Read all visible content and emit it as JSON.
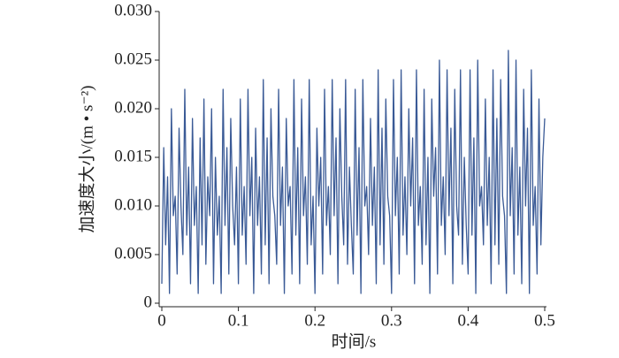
{
  "chart_data": {
    "type": "line",
    "x_label": "时间/s",
    "y_label": "加速度大小/(m • s⁻²)",
    "color": "#3a5a96",
    "xlim": [
      0,
      0.5
    ],
    "xticks": [
      0,
      0.1,
      0.2,
      0.3,
      0.4,
      0.5
    ],
    "ylim": [
      0,
      0.03
    ],
    "yticks": [
      0,
      0.005,
      {
        "value": 0.01,
        "label": "0.010"
      },
      0.015,
      {
        "value": 0.02,
        "label": "0.020"
      },
      0.025,
      {
        "value": 0.03,
        "label": "0.030"
      }
    ],
    "grid": false,
    "x": [
      0,
      0.0025,
      0.005,
      0.0075,
      0.01,
      0.0125,
      0.015,
      0.0175,
      0.02,
      0.0225,
      0.025,
      0.0275,
      0.03,
      0.0325,
      0.035,
      0.0375,
      0.04,
      0.0425,
      0.045,
      0.0475,
      0.05,
      0.0525,
      0.055,
      0.0575,
      0.06,
      0.0625,
      0.065,
      0.0675,
      0.07,
      0.0725,
      0.075,
      0.0775,
      0.08,
      0.0825,
      0.085,
      0.0875,
      0.09,
      0.0925,
      0.095,
      0.0975,
      0.1,
      0.1025,
      0.105,
      0.1075,
      0.11,
      0.1125,
      0.115,
      0.1175,
      0.12,
      0.1225,
      0.125,
      0.1275,
      0.13,
      0.1325,
      0.135,
      0.1375,
      0.14,
      0.1425,
      0.145,
      0.1475,
      0.15,
      0.1525,
      0.155,
      0.1575,
      0.16,
      0.1625,
      0.165,
      0.1675,
      0.17,
      0.1725,
      0.175,
      0.1775,
      0.18,
      0.1825,
      0.185,
      0.1875,
      0.19,
      0.1925,
      0.195,
      0.1975,
      0.2,
      0.2025,
      0.205,
      0.2075,
      0.21,
      0.2125,
      0.215,
      0.2175,
      0.22,
      0.2225,
      0.225,
      0.2275,
      0.23,
      0.2325,
      0.235,
      0.2375,
      0.24,
      0.2425,
      0.245,
      0.2475,
      0.25,
      0.2525,
      0.255,
      0.2575,
      0.26,
      0.2625,
      0.265,
      0.2675,
      0.27,
      0.2725,
      0.275,
      0.2775,
      0.28,
      0.2825,
      0.285,
      0.2875,
      0.29,
      0.2925,
      0.295,
      0.2975,
      0.3,
      0.3025,
      0.305,
      0.3075,
      0.31,
      0.3125,
      0.315,
      0.3175,
      0.32,
      0.3225,
      0.325,
      0.3275,
      0.33,
      0.3325,
      0.335,
      0.3375,
      0.34,
      0.3425,
      0.345,
      0.3475,
      0.35,
      0.3525,
      0.355,
      0.3575,
      0.36,
      0.3625,
      0.365,
      0.3675,
      0.37,
      0.3725,
      0.375,
      0.3775,
      0.38,
      0.3825,
      0.385,
      0.3875,
      0.39,
      0.3925,
      0.395,
      0.3975,
      0.4,
      0.4025,
      0.405,
      0.4075,
      0.41,
      0.4125,
      0.415,
      0.4175,
      0.42,
      0.4225,
      0.425,
      0.4275,
      0.43,
      0.4325,
      0.435,
      0.4375,
      0.44,
      0.4425,
      0.445,
      0.4475,
      0.45,
      0.4525,
      0.455,
      0.4575,
      0.46,
      0.4625,
      0.465,
      0.4675,
      0.47,
      0.4725,
      0.475,
      0.4775,
      0.48,
      0.4825,
      0.485,
      0.4875,
      0.49,
      0.4925,
      0.495,
      0.4975,
      0.5
    ],
    "values": [
      0.002,
      0.016,
      0.006,
      0.013,
      0.001,
      0.02,
      0.009,
      0.011,
      0.003,
      0.018,
      0.01,
      0.005,
      0.022,
      0.007,
      0.014,
      0.002,
      0.019,
      0.008,
      0.012,
      0.001,
      0.017,
      0.006,
      0.021,
      0.004,
      0.013,
      0.009,
      0.02,
      0.002,
      0.015,
      0.007,
      0.011,
      0.001,
      0.022,
      0.008,
      0.016,
      0.003,
      0.019,
      0.01,
      0.006,
      0.014,
      0.002,
      0.021,
      0.007,
      0.012,
      0.004,
      0.022,
      0.009,
      0.015,
      0.001,
      0.018,
      0.008,
      0.013,
      0.003,
      0.023,
      0.006,
      0.017,
      0.002,
      0.02,
      0.011,
      0.009,
      0.004,
      0.022,
      0.008,
      0.014,
      0.001,
      0.019,
      0.01,
      0.012,
      0.003,
      0.023,
      0.007,
      0.016,
      0.002,
      0.021,
      0.009,
      0.013,
      0.004,
      0.023,
      0.006,
      0.011,
      0.001,
      0.018,
      0.01,
      0.015,
      0.003,
      0.022,
      0.008,
      0.012,
      0.005,
      0.023,
      0.009,
      0.017,
      0.002,
      0.02,
      0.011,
      0.006,
      0.023,
      0.004,
      0.014,
      0.008,
      0.003,
      0.022,
      0.007,
      0.016,
      0.001,
      0.023,
      0.01,
      0.012,
      0.005,
      0.019,
      0.008,
      0.014,
      0.002,
      0.024,
      0.006,
      0.018,
      0.004,
      0.021,
      0.011,
      0.009,
      0.001,
      0.023,
      0.009,
      0.015,
      0.003,
      0.024,
      0.007,
      0.013,
      0.005,
      0.02,
      0.01,
      0.017,
      0.002,
      0.024,
      0.008,
      0.012,
      0.004,
      0.022,
      0.006,
      0.015,
      0.001,
      0.021,
      0.011,
      0.016,
      0.003,
      0.025,
      0.008,
      0.013,
      0.005,
      0.024,
      0.009,
      0.018,
      0.002,
      0.022,
      0.01,
      0.007,
      0.024,
      0.004,
      0.015,
      0.008,
      0.003,
      0.024,
      0.007,
      0.017,
      0.001,
      0.025,
      0.01,
      0.012,
      0.006,
      0.021,
      0.008,
      0.015,
      0.002,
      0.024,
      0.006,
      0.019,
      0.004,
      0.023,
      0.011,
      0.009,
      0.001,
      0.026,
      0.009,
      0.016,
      0.003,
      0.025,
      0.007,
      0.014,
      0.002,
      0.022,
      0.01,
      0.018,
      0.001,
      0.024,
      0.008,
      0.012,
      0.003,
      0.021,
      0.006,
      0.015,
      0.019
    ]
  }
}
